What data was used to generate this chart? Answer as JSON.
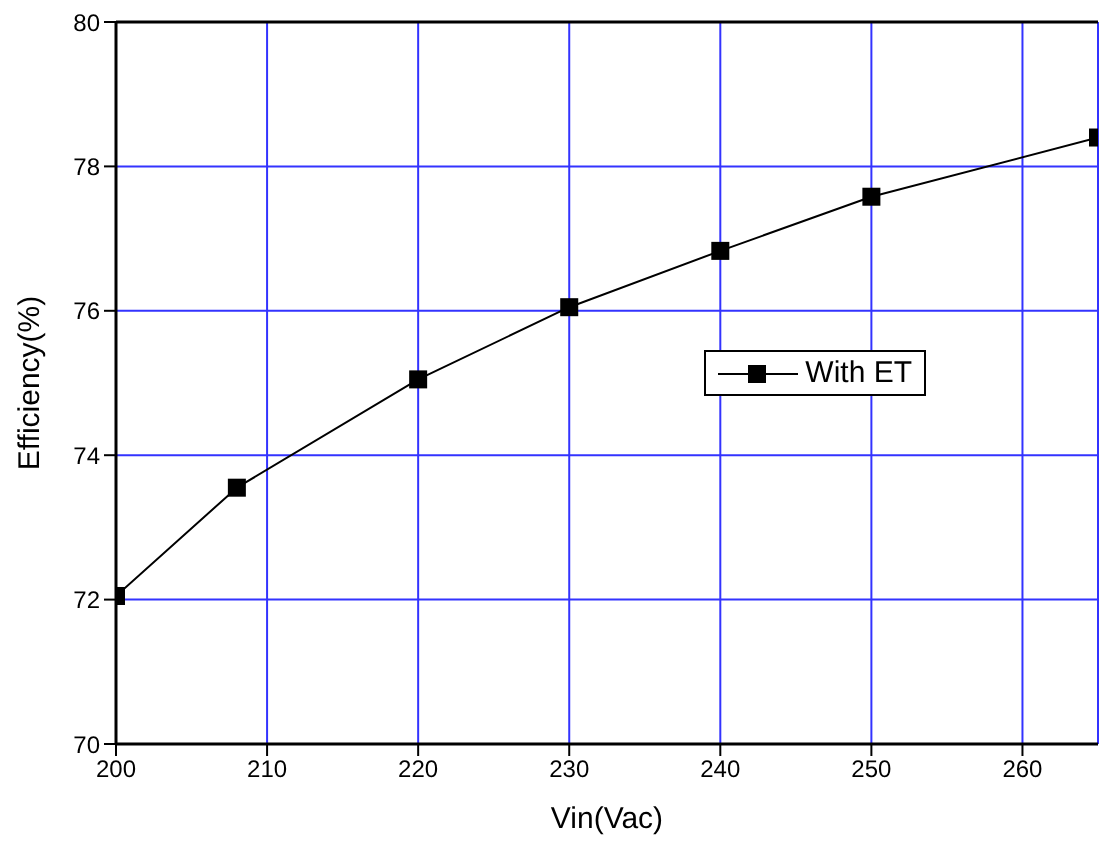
{
  "chart_data": {
    "type": "line",
    "xlabel": "Vin(Vac)",
    "ylabel": "Efficiency(%)",
    "x": [
      200,
      208,
      220,
      230,
      240,
      250,
      265
    ],
    "series": [
      {
        "name": "With ET",
        "color": "#000000",
        "values": [
          72.05,
          73.55,
          75.05,
          76.05,
          76.83,
          77.58,
          78.4
        ]
      }
    ],
    "xlim": [
      200,
      265
    ],
    "xticks": [
      200,
      210,
      220,
      230,
      240,
      250,
      260
    ],
    "ylim": [
      70,
      80
    ],
    "yticks": [
      70,
      72,
      74,
      76,
      78,
      80
    ],
    "grid": true,
    "legend": "right",
    "marker": "square",
    "line_style": "solid"
  }
}
